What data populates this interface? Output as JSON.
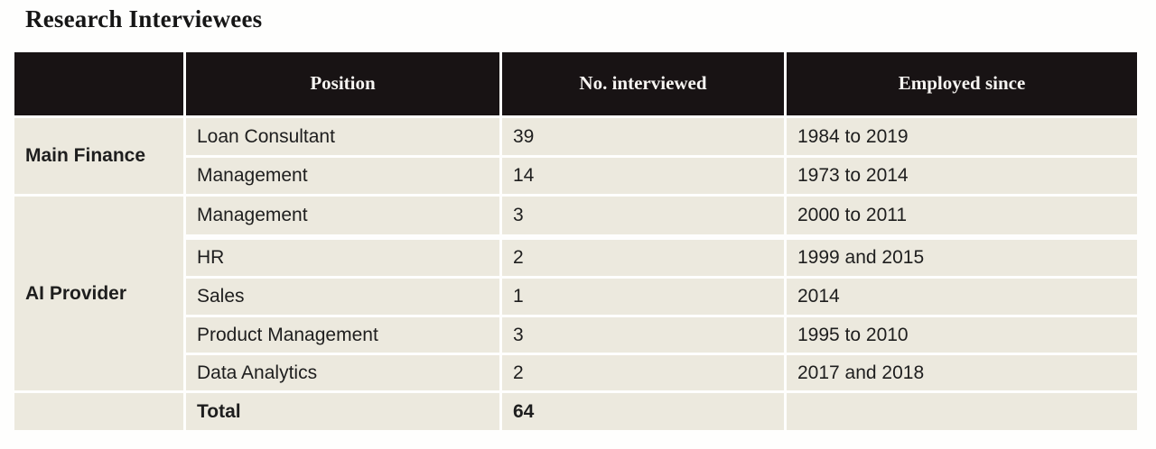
{
  "title": "Research Interviewees",
  "colors": {
    "header_bg": "#181314",
    "header_text": "#f7f5f2",
    "body_cell_bg": "#ece9de",
    "body_text": "#1e1e1e",
    "separator": "#ffffff",
    "page_bg": "#fefefd"
  },
  "table": {
    "headers": [
      "",
      "Position",
      "No. interviewed",
      "Employed since"
    ],
    "groups": [
      {
        "name": "Main Finance",
        "rows": [
          {
            "position": "Loan Consultant",
            "count": "39",
            "employed": "1984 to 2019"
          },
          {
            "position": "Management",
            "count": "14",
            "employed": "1973 to 2014"
          }
        ]
      },
      {
        "name": "AI Provider",
        "rows": [
          {
            "position": "Management",
            "count": "3",
            "employed": "2000 to 2011"
          },
          {
            "position": "HR",
            "count": "2",
            "employed": "1999 and 2015"
          },
          {
            "position": "Sales",
            "count": "1",
            "employed": "2014"
          },
          {
            "position": "Product Management",
            "count": "3",
            "employed": "1995 to 2010"
          },
          {
            "position": "Data Analytics",
            "count": "2",
            "employed": "2017 and 2018"
          }
        ]
      }
    ],
    "total_label": "Total",
    "total_value": "64"
  },
  "chart_data": {
    "type": "table",
    "title": "Research Interviewees",
    "columns": [
      "",
      "Position",
      "No. interviewed",
      "Employed since"
    ],
    "rows": [
      [
        "Main Finance",
        "Loan Consultant",
        39,
        "1984 to 2019"
      ],
      [
        "Main Finance",
        "Management",
        14,
        "1973 to 2014"
      ],
      [
        "AI Provider",
        "Management",
        3,
        "2000 to 2011"
      ],
      [
        "AI Provider",
        "HR",
        2,
        "1999 and 2015"
      ],
      [
        "AI Provider",
        "Sales",
        1,
        "2014"
      ],
      [
        "AI Provider",
        "Product Management",
        3,
        "1995 to 2010"
      ],
      [
        "AI Provider",
        "Data Analytics",
        2,
        "2017 and 2018"
      ],
      [
        "",
        "Total",
        64,
        ""
      ]
    ],
    "layout": {
      "group_column_rowspans": {
        "Main Finance": 2,
        "AI Provider": 5
      },
      "header_style": "black background, white bold serif text",
      "body_style": "cream cells with white separators"
    }
  }
}
